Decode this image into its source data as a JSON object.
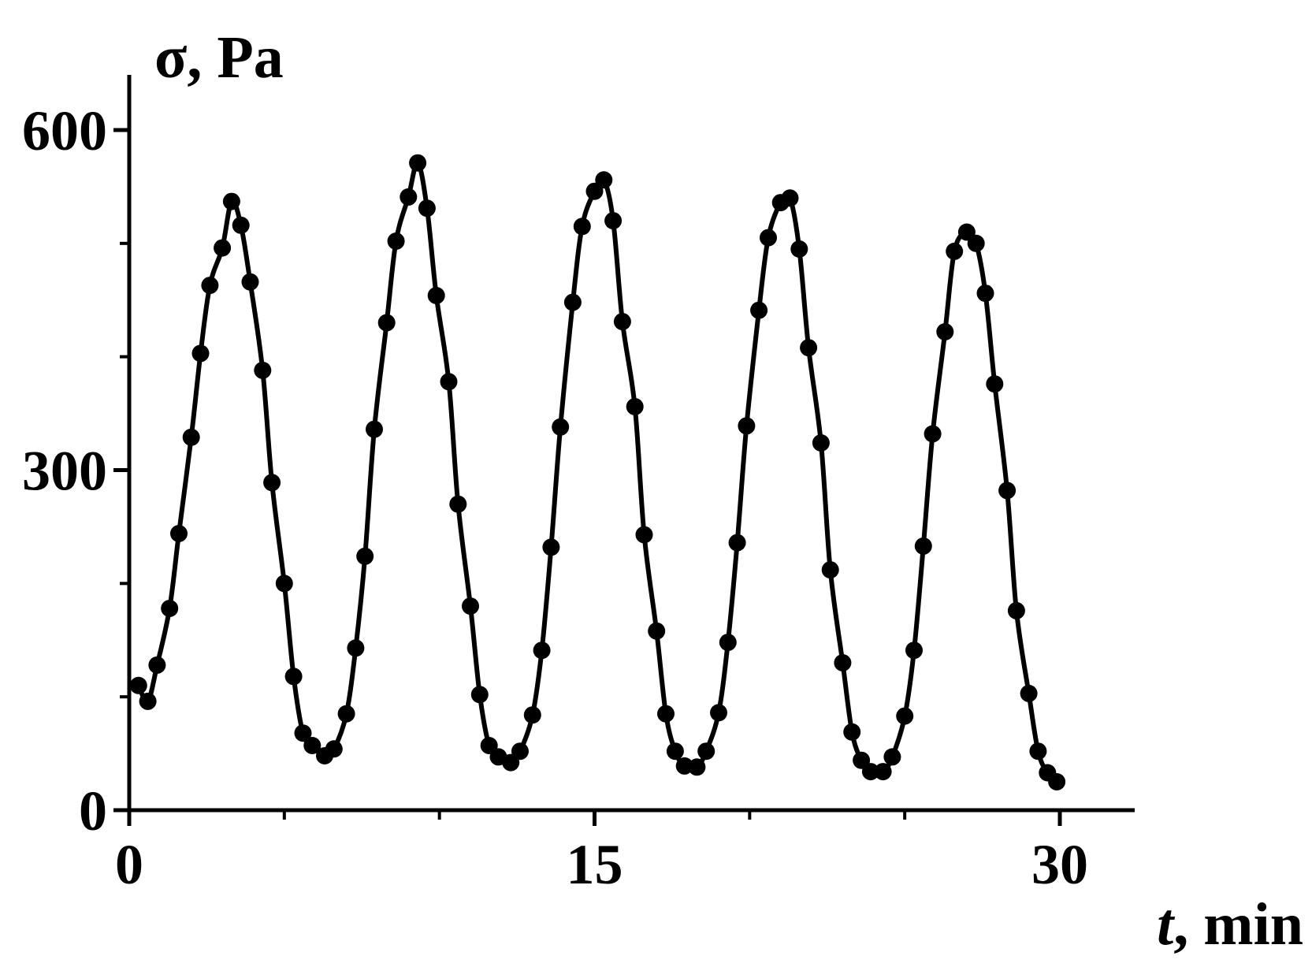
{
  "chart_data": {
    "type": "line",
    "title": "",
    "xlabel_var": "t",
    "xlabel_rest": ", min",
    "ylabel": "σ, Pa",
    "xlim": [
      0,
      32.5
    ],
    "ylim": [
      0,
      650
    ],
    "x_ticks": [
      0,
      15,
      30
    ],
    "x_tick_labels": [
      "0",
      "15",
      "30"
    ],
    "x_minor_ticks": [
      5,
      10,
      20,
      25
    ],
    "y_ticks": [
      0,
      300,
      600
    ],
    "y_tick_labels": [
      "0",
      "300",
      "600"
    ],
    "y_minor_ticks": [
      100,
      200,
      400,
      500
    ],
    "grid": false,
    "line_color": "#000000",
    "marker_color": "#000000",
    "series": [
      {
        "x": [
          0.3,
          0.6,
          0.9,
          1.3,
          1.6,
          2.0,
          2.3,
          2.6,
          3.0,
          3.3,
          3.6,
          3.9,
          4.3,
          4.6,
          5.0,
          5.3,
          5.6,
          5.9,
          6.3,
          6.6,
          7.0,
          7.3,
          7.6,
          7.9,
          8.3,
          8.6,
          9.0,
          9.3,
          9.6,
          9.9,
          10.3,
          10.6,
          11.0,
          11.3,
          11.6,
          11.9,
          12.3,
          12.6,
          13.0,
          13.3,
          13.6,
          13.9,
          14.3,
          14.6,
          15.0,
          15.3,
          15.6,
          15.9,
          16.3,
          16.6,
          17.0,
          17.3,
          17.6,
          17.9,
          18.3,
          18.6,
          19.0,
          19.3,
          19.6,
          19.9,
          20.3,
          20.6,
          21.0,
          21.3,
          21.6,
          21.9,
          22.3,
          22.6,
          23.0,
          23.3,
          23.6,
          23.9,
          24.3,
          24.6,
          25.0,
          25.3,
          25.6,
          25.9,
          26.3,
          26.6,
          27.0,
          27.3,
          27.6,
          27.9,
          28.3,
          28.6,
          29.0,
          29.3,
          29.6,
          29.9
        ],
        "y": [
          110,
          96,
          128,
          178,
          244,
          329,
          403,
          463,
          496,
          537,
          516,
          466,
          388,
          289,
          200,
          118,
          68,
          57,
          48,
          54,
          85,
          143,
          224,
          336,
          430,
          502,
          541,
          571,
          531,
          454,
          378,
          270,
          180,
          102,
          57,
          47,
          42,
          52,
          84,
          141,
          232,
          338,
          448,
          515,
          546,
          556,
          520,
          431,
          356,
          243,
          158,
          85,
          52,
          39,
          38,
          52,
          86,
          148,
          236,
          339,
          441,
          505,
          536,
          540,
          495,
          408,
          324,
          212,
          130,
          69,
          44,
          34,
          34,
          47,
          83,
          141,
          233,
          332,
          422,
          493,
          510,
          500,
          456,
          376,
          282,
          176,
          103,
          52,
          33,
          25
        ]
      }
    ]
  }
}
